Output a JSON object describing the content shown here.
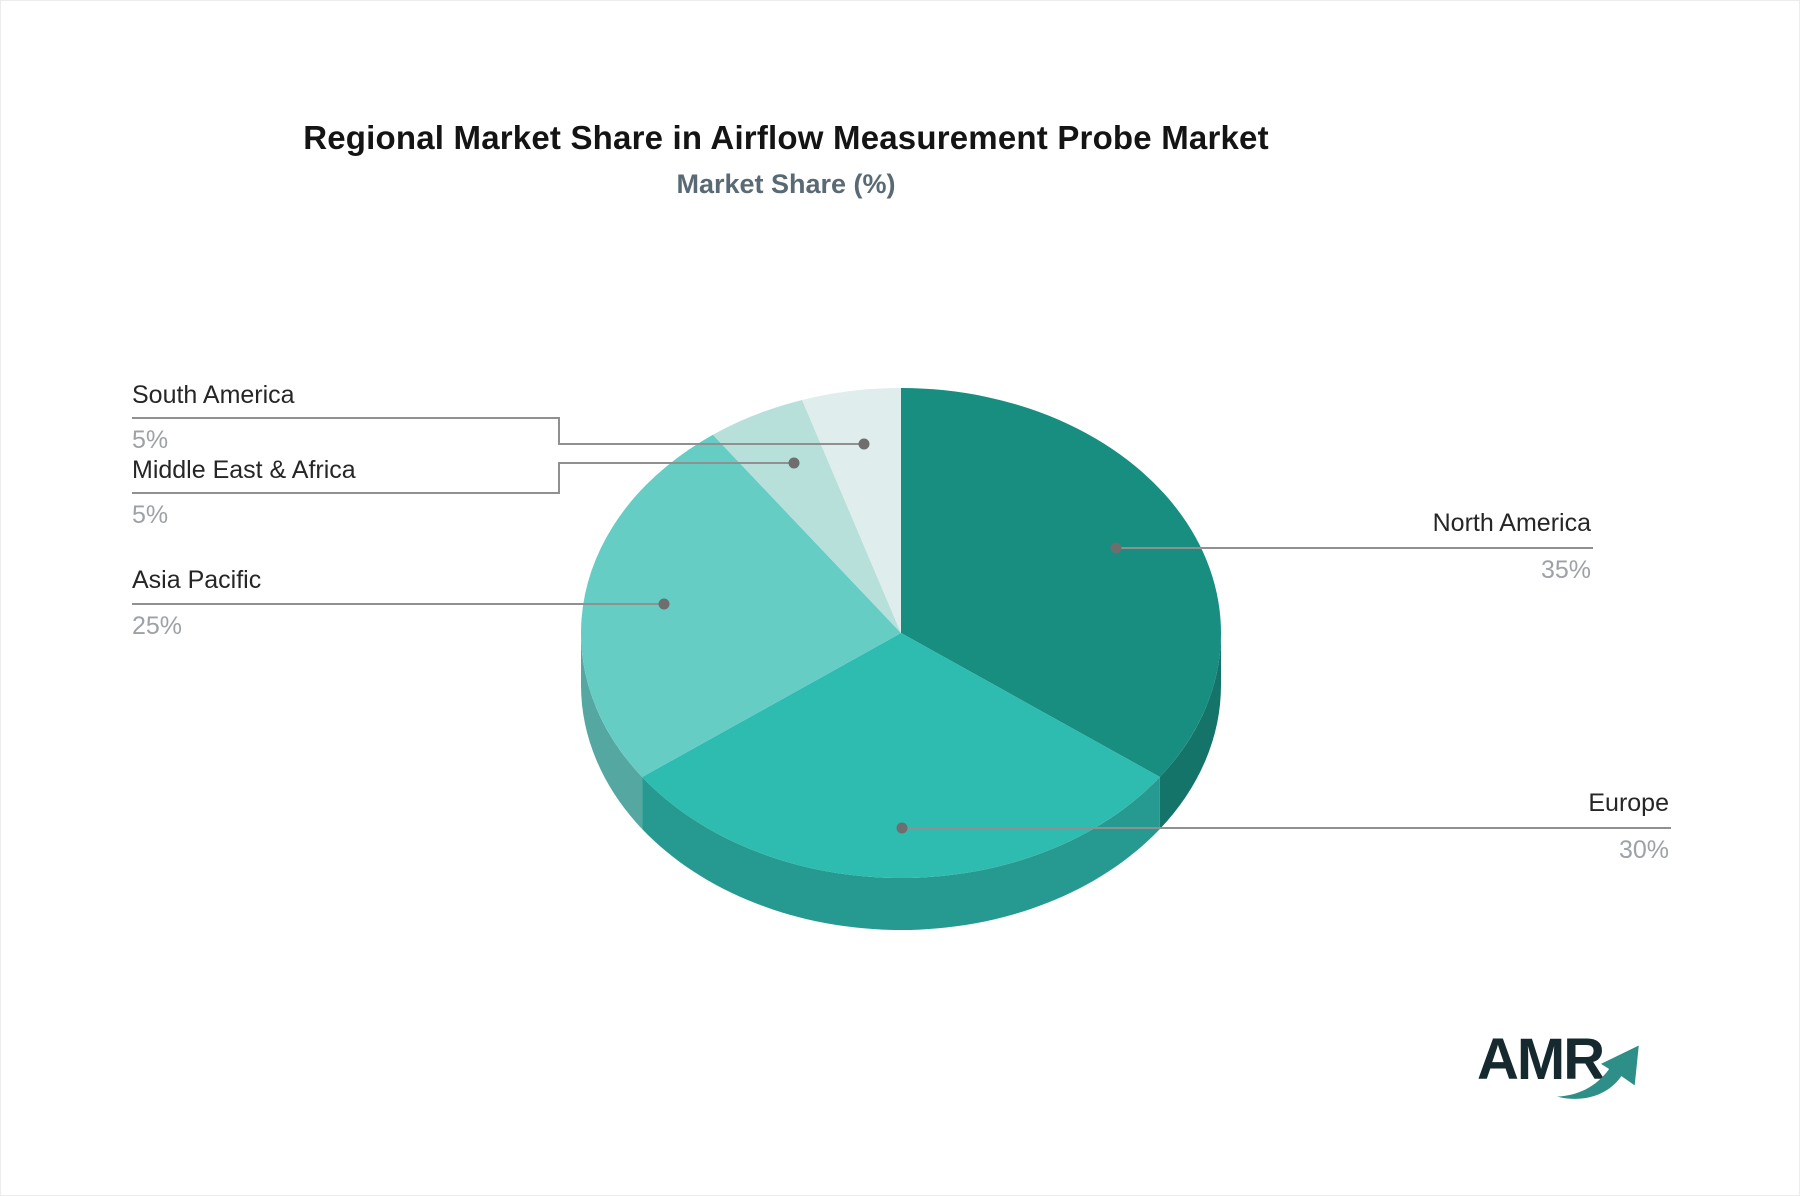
{
  "header": {
    "title": "Regional Market Share in Airflow Measurement Probe Market",
    "subtitle": "Market Share (%)"
  },
  "chart_data": {
    "type": "pie",
    "title": "Regional Market Share in Airflow Measurement Probe Market",
    "subtitle": "Market Share (%)",
    "unit": "%",
    "style": "3d",
    "direction": "clockwise",
    "start_angle_deg_from_top": 0,
    "legend_position": "none",
    "slices": [
      {
        "name": "North America",
        "value": 35,
        "label": "35%",
        "color": "#188E80"
      },
      {
        "name": "Europe",
        "value": 30,
        "label": "30%",
        "color": "#2EBCB1"
      },
      {
        "name": "Asia Pacific",
        "value": 25,
        "label": "25%",
        "color": "#66CDC4"
      },
      {
        "name": "Middle East & Africa",
        "value": 5,
        "label": "5%",
        "color": "#B8E0DA"
      },
      {
        "name": "South America",
        "value": 5,
        "label": "5%",
        "color": "#DFEEEC"
      }
    ]
  },
  "colors": {
    "leader_line": "#909090",
    "leader_dot": "#6E6E6E",
    "label_name": "#262626",
    "label_value": "#9EA2A6",
    "logo_text": "#15292E",
    "logo_arrow": "#2E8F88"
  },
  "logo": {
    "text": "AMR"
  }
}
